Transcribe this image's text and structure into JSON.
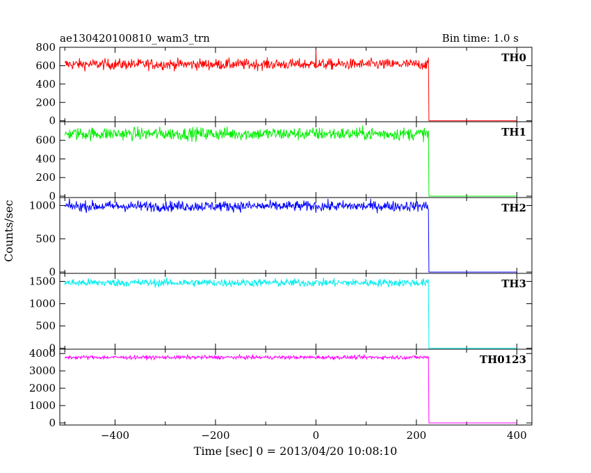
{
  "chart_data": {
    "type": "line",
    "title": "ae130420100810_wam3_trn",
    "bin_time": "Bin time: 1.0 s",
    "xlabel": "Time [sec] 0 = 2013/04/20 10:08:10",
    "ylabel": "Counts/sec",
    "xlim": [
      -510,
      430
    ],
    "x_ticks": [
      -400,
      -200,
      0,
      200,
      400
    ],
    "grid": false,
    "panels": [
      {
        "name": "TH0",
        "color": "#ff0000",
        "ylim": [
          -10,
          800
        ],
        "y_ticks": [
          0,
          200,
          400,
          600,
          800
        ],
        "level": 615,
        "noise": 30,
        "end_value": 0,
        "cutoff": 225,
        "x_start": -500,
        "x_end": 400,
        "spike": {
          "x": 0,
          "value": 770
        }
      },
      {
        "name": "TH1",
        "color": "#00ee00",
        "ylim": [
          -15,
          800
        ],
        "y_ticks": [
          0,
          200,
          400,
          600
        ],
        "level": 670,
        "noise": 35,
        "end_value": 0,
        "cutoff": 225,
        "x_start": -500,
        "x_end": 400
      },
      {
        "name": "TH2",
        "color": "#0000ff",
        "ylim": [
          -20,
          1120
        ],
        "y_ticks": [
          0,
          500,
          1000
        ],
        "level": 990,
        "noise": 40,
        "end_value": 0,
        "cutoff": 225,
        "x_start": -500,
        "x_end": 400
      },
      {
        "name": "TH3",
        "color": "#00eeee",
        "ylim": [
          -20,
          1680
        ],
        "y_ticks": [
          0,
          500,
          1000,
          1500
        ],
        "level": 1470,
        "noise": 45,
        "end_value": 0,
        "cutoff": 225,
        "x_start": -500,
        "x_end": 400
      },
      {
        "name": "TH0123",
        "color": "#ff00ff",
        "ylim": [
          -120,
          4250
        ],
        "y_ticks": [
          0,
          1000,
          2000,
          3000,
          4000
        ],
        "level": 3780,
        "noise": 55,
        "end_value": 0,
        "cutoff": 225,
        "x_start": -500,
        "x_end": 400
      }
    ]
  }
}
